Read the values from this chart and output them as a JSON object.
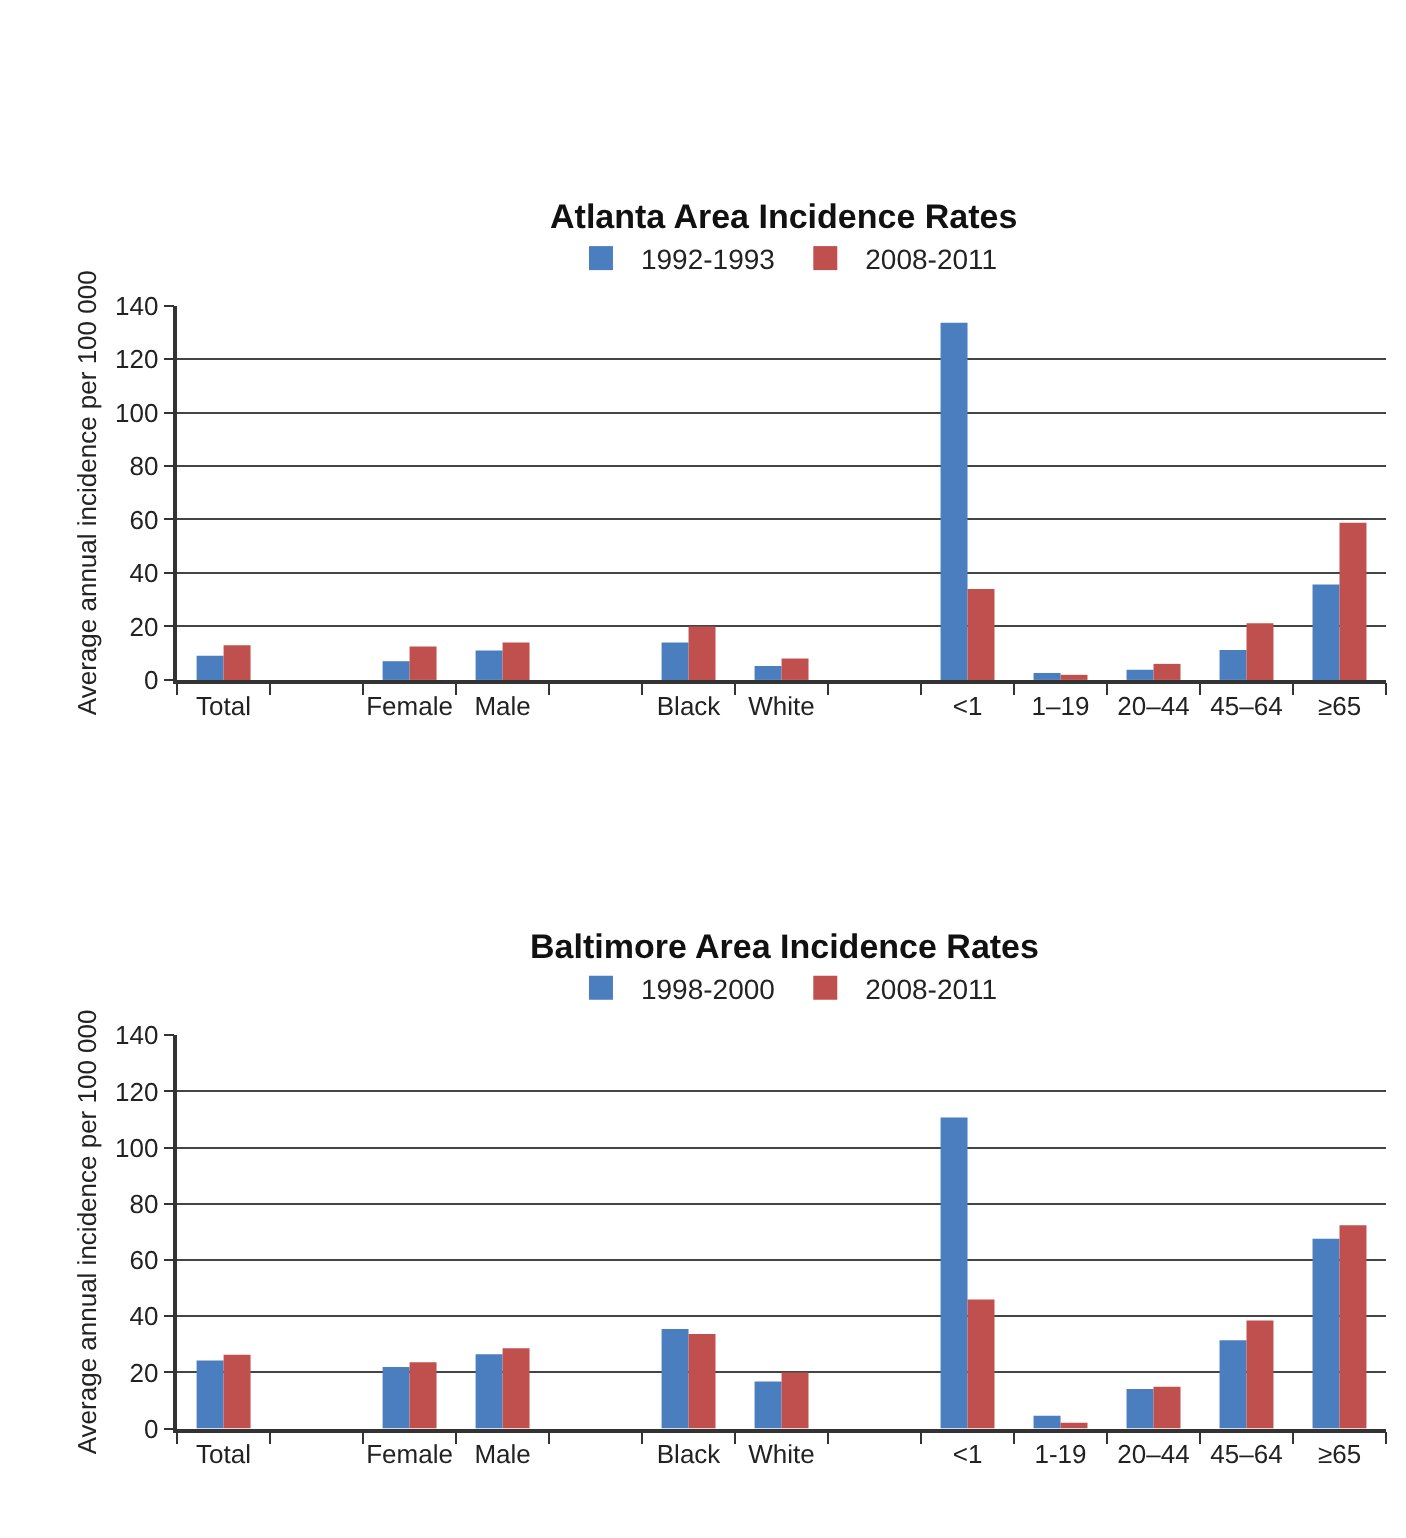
{
  "chart_data": [
    {
      "type": "bar",
      "title": "Atlanta Area Incidence Rates",
      "ylabel": "Average annual incidence per 100 000",
      "categories": [
        "Total",
        null,
        "Female",
        "Male",
        null,
        "Black",
        "White",
        null,
        "<1",
        "1–19",
        "20–44",
        "45–64",
        "≥65"
      ],
      "series": [
        {
          "name": "1992-1993",
          "color": "#4a7ebf",
          "values": [
            9,
            null,
            7,
            11,
            null,
            14,
            5.2,
            null,
            133.6,
            2.6,
            3.8,
            11.2,
            35.7
          ]
        },
        {
          "name": "2008-2011",
          "color": "#c0504d",
          "values": [
            13,
            null,
            12.5,
            14,
            null,
            20,
            8,
            null,
            34,
            1.9,
            6,
            21.2,
            58.8
          ]
        }
      ],
      "ylim": [
        0,
        140
      ],
      "yticks": [
        0,
        20,
        40,
        60,
        80,
        100,
        120,
        140
      ],
      "grid": "y",
      "legend": "top"
    },
    {
      "type": "bar",
      "title": "Baltimore Area Incidence Rates",
      "ylabel": "Average annual incidence per 100 000",
      "categories": [
        "Total",
        null,
        "Female",
        "Male",
        null,
        "Black",
        "White",
        null,
        "<1",
        "1-19",
        "20–44",
        "45–64",
        "≥65"
      ],
      "series": [
        {
          "name": "1998-2000",
          "color": "#4a7ebf",
          "values": [
            24.2,
            null,
            21.9,
            26.5,
            null,
            35.4,
            16.8,
            null,
            110.7,
            4.6,
            14.1,
            31.4,
            67.6
          ]
        },
        {
          "name": "2008-2011",
          "color": "#c0504d",
          "values": [
            26.3,
            null,
            23.6,
            28.6,
            null,
            33.7,
            20,
            null,
            45.9,
            2.1,
            14.9,
            38.5,
            72.4
          ]
        }
      ],
      "ylim": [
        0,
        140
      ],
      "yticks": [
        0,
        20,
        40,
        60,
        80,
        100,
        120,
        140
      ],
      "grid": "y",
      "legend": "top"
    }
  ]
}
